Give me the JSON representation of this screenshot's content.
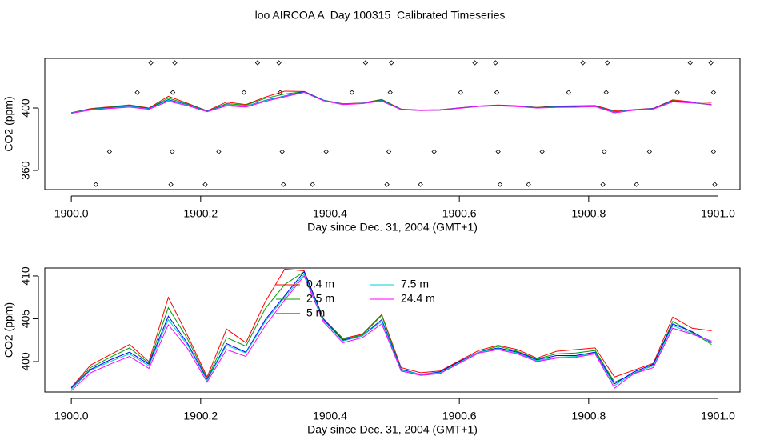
{
  "title": "loo AIRCOA A  Day 100315  Calibrated Timeseries",
  "chart_data": [
    {
      "type": "line",
      "xlabel": "Day since Dec. 31, 2004 (GMT+1)",
      "ylabel": "CO2 (ppm)",
      "xlim": [
        1899.959,
        1901.034
      ],
      "ylim": [
        347.7,
        431.8
      ],
      "xticks": [
        {
          "value": 1900,
          "label": "1900.0"
        },
        {
          "value": 1900.2,
          "label": "1900.2"
        },
        {
          "value": 1900.4,
          "label": "1900.4"
        },
        {
          "value": 1900.6,
          "label": "1900.6"
        },
        {
          "value": 1900.8,
          "label": "1900.8"
        },
        {
          "value": 1901,
          "label": "1901.0"
        }
      ],
      "yticks": [
        360,
        400
      ],
      "legend": false,
      "x": [
        1900.0,
        1900.03,
        1900.06,
        1900.09,
        1900.12,
        1900.15,
        1900.18,
        1900.21,
        1900.24,
        1900.27,
        1900.3,
        1900.33,
        1900.36,
        1900.39,
        1900.42,
        1900.45,
        1900.48,
        1900.51,
        1900.54,
        1900.57,
        1900.6,
        1900.63,
        1900.66,
        1900.69,
        1900.72,
        1900.75,
        1900.78,
        1900.81,
        1900.84,
        1900.87,
        1900.9,
        1900.93,
        1900.96,
        1900.99
      ],
      "series": [
        {
          "name": "0.4 m",
          "color": "#ff0000",
          "values": [
            397.0,
            399.6,
            400.8,
            402.0,
            400.0,
            407.5,
            403.0,
            398.2,
            403.8,
            402.2,
            407.0,
            410.8,
            410.6,
            405.0,
            402.7,
            403.2,
            405.5,
            399.3,
            398.7,
            398.9,
            400.1,
            401.3,
            401.9,
            401.4,
            400.4,
            401.2,
            401.4,
            401.6,
            398.2,
            399.0,
            399.8,
            405.2,
            403.9,
            403.6
          ]
        },
        {
          "name": "2.5 m",
          "color": "#00a000",
          "values": [
            397.0,
            399.3,
            400.5,
            401.6,
            399.8,
            406.3,
            402.6,
            398.0,
            402.8,
            401.8,
            406.2,
            409.0,
            410.5,
            405.0,
            402.6,
            403.1,
            405.4,
            399.1,
            398.4,
            398.6,
            400.0,
            401.1,
            401.8,
            401.2,
            400.3,
            400.9,
            401.0,
            401.3,
            397.6,
            398.6,
            399.6,
            404.7,
            403.4,
            402.0
          ]
        },
        {
          "name": "5 m",
          "color": "#0000ff",
          "values": [
            396.9,
            399.1,
            400.2,
            401.1,
            399.7,
            405.3,
            402.1,
            397.9,
            402.1,
            401.1,
            404.9,
            407.7,
            410.5,
            404.9,
            402.5,
            403.0,
            404.9,
            399.1,
            398.5,
            398.8,
            400.0,
            401.1,
            401.6,
            401.1,
            400.2,
            400.7,
            400.7,
            401.1,
            397.4,
            398.8,
            399.7,
            404.4,
            403.5,
            402.2
          ]
        },
        {
          "name": "7.5 m",
          "color": "#00d0d0",
          "values": [
            396.8,
            399.0,
            400.0,
            400.9,
            399.5,
            404.9,
            401.9,
            397.8,
            401.9,
            401.0,
            404.7,
            407.5,
            410.2,
            404.8,
            402.4,
            403.0,
            404.7,
            399.0,
            398.5,
            398.7,
            399.9,
            401.1,
            401.5,
            401.0,
            400.1,
            400.5,
            400.6,
            401.0,
            397.2,
            398.7,
            399.5,
            404.2,
            403.3,
            402.3
          ]
        },
        {
          "name": "24.4 m",
          "color": "#ff00ff",
          "values": [
            396.6,
            398.7,
            399.7,
            400.6,
            399.2,
            404.3,
            401.5,
            397.6,
            401.4,
            400.6,
            404.2,
            407.2,
            410.0,
            404.6,
            402.2,
            402.8,
            404.4,
            398.9,
            398.4,
            398.6,
            399.8,
            401.0,
            401.4,
            400.9,
            400.0,
            400.4,
            400.5,
            400.9,
            396.9,
            398.6,
            399.3,
            403.9,
            403.2,
            402.4
          ]
        }
      ],
      "points": {
        "x": [
          1900.123,
          1900.16,
          1900.288,
          1900.321,
          1900.455,
          1900.495,
          1900.624,
          1900.656,
          1900.791,
          1900.829,
          1900.957,
          1900.989,
          1900.102,
          1900.157,
          1900.267,
          1900.323,
          1900.434,
          1900.493,
          1900.602,
          1900.658,
          1900.769,
          1900.827,
          1900.937,
          1900.993,
          1900.059,
          1900.156,
          1900.228,
          1900.326,
          1900.394,
          1900.491,
          1900.561,
          1900.66,
          1900.728,
          1900.824,
          1900.894,
          1900.993,
          1900.038,
          1900.154,
          1900.207,
          1900.328,
          1900.373,
          1900.488,
          1900.54,
          1900.663,
          1900.707,
          1900.822,
          1900.874,
          1900.995
        ],
        "y": [
          429,
          429,
          429,
          429,
          429,
          429,
          429,
          429,
          429,
          429,
          429,
          429,
          410,
          410,
          410,
          410,
          410,
          410,
          410,
          410,
          410,
          410,
          410,
          410,
          372,
          372,
          372,
          372,
          372,
          372,
          372,
          372,
          372,
          372,
          372,
          372,
          351,
          351,
          351,
          351,
          351,
          351,
          351,
          351,
          351,
          351,
          351,
          351
        ]
      }
    },
    {
      "type": "line",
      "xlabel": "Day since Dec. 31, 2004 (GMT+1)",
      "ylabel": "CO2 (ppm)",
      "xlim": [
        1899.959,
        1901.034
      ],
      "ylim": [
        396.45,
        410.93
      ],
      "xticks": [
        {
          "value": 1900,
          "label": "1900.0"
        },
        {
          "value": 1900.2,
          "label": "1900.2"
        },
        {
          "value": 1900.4,
          "label": "1900.4"
        },
        {
          "value": 1900.6,
          "label": "1900.6"
        },
        {
          "value": 1900.8,
          "label": "1900.8"
        },
        {
          "value": 1901,
          "label": "1901.0"
        }
      ],
      "yticks": [
        400,
        405,
        410
      ],
      "legend": "top",
      "x": [
        1900.0,
        1900.03,
        1900.06,
        1900.09,
        1900.12,
        1900.15,
        1900.18,
        1900.21,
        1900.24,
        1900.27,
        1900.3,
        1900.33,
        1900.36,
        1900.39,
        1900.42,
        1900.45,
        1900.48,
        1900.51,
        1900.54,
        1900.57,
        1900.6,
        1900.63,
        1900.66,
        1900.69,
        1900.72,
        1900.75,
        1900.78,
        1900.81,
        1900.84,
        1900.87,
        1900.9,
        1900.93,
        1900.96,
        1900.99
      ],
      "series": [
        {
          "name": "0.4 m",
          "color": "#ff0000",
          "values": [
            397.0,
            399.6,
            400.8,
            402.0,
            400.0,
            407.5,
            403.0,
            398.2,
            403.8,
            402.2,
            407.0,
            410.8,
            410.6,
            405.0,
            402.7,
            403.2,
            405.5,
            399.3,
            398.7,
            398.9,
            400.1,
            401.3,
            401.9,
            401.4,
            400.4,
            401.2,
            401.4,
            401.6,
            398.2,
            399.0,
            399.8,
            405.2,
            403.9,
            403.6
          ]
        },
        {
          "name": "2.5 m",
          "color": "#00a000",
          "values": [
            397.0,
            399.3,
            400.5,
            401.6,
            399.8,
            406.3,
            402.6,
            398.0,
            402.8,
            401.8,
            406.2,
            409.0,
            410.5,
            405.0,
            402.6,
            403.1,
            405.4,
            399.1,
            398.4,
            398.6,
            400.0,
            401.1,
            401.8,
            401.2,
            400.3,
            400.9,
            401.0,
            401.3,
            397.6,
            398.6,
            399.6,
            404.7,
            403.4,
            402.0
          ]
        },
        {
          "name": "5 m",
          "color": "#0000ff",
          "values": [
            396.9,
            399.1,
            400.2,
            401.1,
            399.7,
            405.3,
            402.1,
            397.9,
            402.1,
            401.1,
            404.9,
            407.7,
            410.5,
            404.9,
            402.5,
            403.0,
            404.9,
            399.1,
            398.5,
            398.8,
            400.0,
            401.1,
            401.6,
            401.1,
            400.2,
            400.7,
            400.7,
            401.1,
            397.4,
            398.8,
            399.7,
            404.4,
            403.5,
            402.2
          ]
        },
        {
          "name": "7.5 m",
          "color": "#00d0d0",
          "values": [
            396.8,
            399.0,
            400.0,
            400.9,
            399.5,
            404.9,
            401.9,
            397.8,
            401.9,
            401.0,
            404.7,
            407.5,
            410.2,
            404.8,
            402.4,
            403.0,
            404.7,
            399.0,
            398.5,
            398.7,
            399.9,
            401.1,
            401.5,
            401.0,
            400.1,
            400.5,
            400.6,
            401.0,
            397.2,
            398.7,
            399.5,
            404.2,
            403.3,
            402.3
          ]
        },
        {
          "name": "24.4 m",
          "color": "#ff00ff",
          "values": [
            396.6,
            398.7,
            399.7,
            400.6,
            399.2,
            404.3,
            401.5,
            397.6,
            401.4,
            400.6,
            404.2,
            407.2,
            410.0,
            404.6,
            402.2,
            402.8,
            404.4,
            398.9,
            398.4,
            398.6,
            399.8,
            401.0,
            401.4,
            400.9,
            400.0,
            400.4,
            400.5,
            400.9,
            396.9,
            398.6,
            399.3,
            403.9,
            403.2,
            402.4
          ]
        }
      ]
    }
  ]
}
